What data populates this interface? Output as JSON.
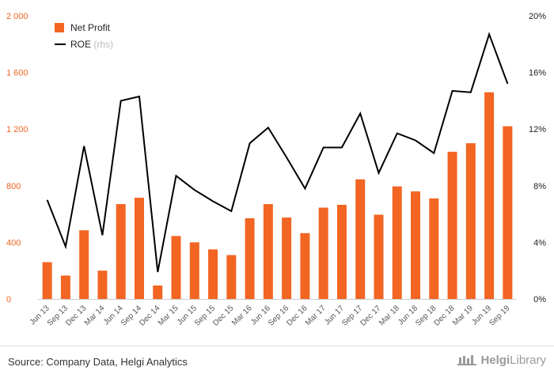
{
  "chart_data": {
    "type": "bar",
    "categories": [
      "Jun 13",
      "Sep 13",
      "Dec 13",
      "Mar 14",
      "Jun 14",
      "Sep 14",
      "Dec 14",
      "Mar 15",
      "Jun 15",
      "Sep 15",
      "Dec 15",
      "Mar 16",
      "Jun 16",
      "Sep 16",
      "Dec 16",
      "Mar 17",
      "Jun 17",
      "Sep 17",
      "Dec 17",
      "Mar 18",
      "Jun 18",
      "Sep 18",
      "Dec 18",
      "Mar 19",
      "Jun 19",
      "Sep 19"
    ],
    "series": [
      {
        "name": "Net Profit",
        "type": "bar",
        "axis": "left",
        "color": "#f26522",
        "values": [
          260,
          165,
          485,
          200,
          670,
          715,
          95,
          445,
          400,
          350,
          310,
          570,
          670,
          575,
          465,
          645,
          665,
          845,
          595,
          795,
          760,
          710,
          1040,
          1100,
          1460,
          1220
        ]
      },
      {
        "name": "ROE",
        "name_suffix": "(rhs)",
        "type": "line",
        "axis": "right",
        "color": "#000000",
        "values": [
          7.0,
          3.7,
          10.8,
          4.5,
          14.0,
          14.3,
          1.9,
          8.7,
          7.7,
          6.9,
          6.2,
          11.0,
          12.1,
          10.0,
          7.8,
          10.7,
          10.7,
          13.1,
          8.9,
          11.7,
          11.2,
          10.3,
          14.7,
          14.6,
          18.7,
          15.2
        ]
      }
    ],
    "yticks_left": [
      "0",
      "400",
      "800",
      "1 200",
      "1 600",
      "2 000"
    ],
    "yticks_right": [
      "0%",
      "4%",
      "8%",
      "12%",
      "16%",
      "20%"
    ],
    "ylim_left": [
      0,
      2000
    ],
    "ylim_right": [
      0,
      20
    ],
    "legend_position": "top-left",
    "grid": false
  },
  "footer": {
    "source": "Source: Company Data, Helgi Analytics",
    "brand_prefix": "Helgi",
    "brand_suffix": "Library"
  }
}
